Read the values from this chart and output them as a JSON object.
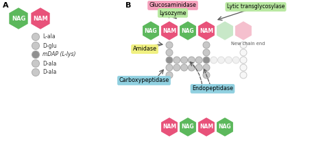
{
  "bg_color": "#ffffff",
  "nag_color": "#5cb85c",
  "nam_color": "#e8527a",
  "nag_light": "#c8e8c8",
  "nam_light": "#f5c0ce",
  "bead_color": "#c8c8c8",
  "bead_dark": "#909090",
  "bead_light": "#e8e8e8",
  "bead_vlight": "#f2f2f2",
  "edge_color": "#aaaaaa",
  "label_gluco_bg": "#f5a0bb",
  "label_lyso_bg": "#b8e8a0",
  "label_lytic_bg": "#b8e8a0",
  "label_amidase_bg": "#f0f080",
  "label_carboxy_bg": "#90d0e0",
  "label_endopep_bg": "#90d0e0",
  "title_a": "A",
  "title_b": "B",
  "legend_labels": [
    "L-ala",
    "D-glu",
    "mDAP (L-lys)",
    "D-ala",
    "D-ala"
  ]
}
